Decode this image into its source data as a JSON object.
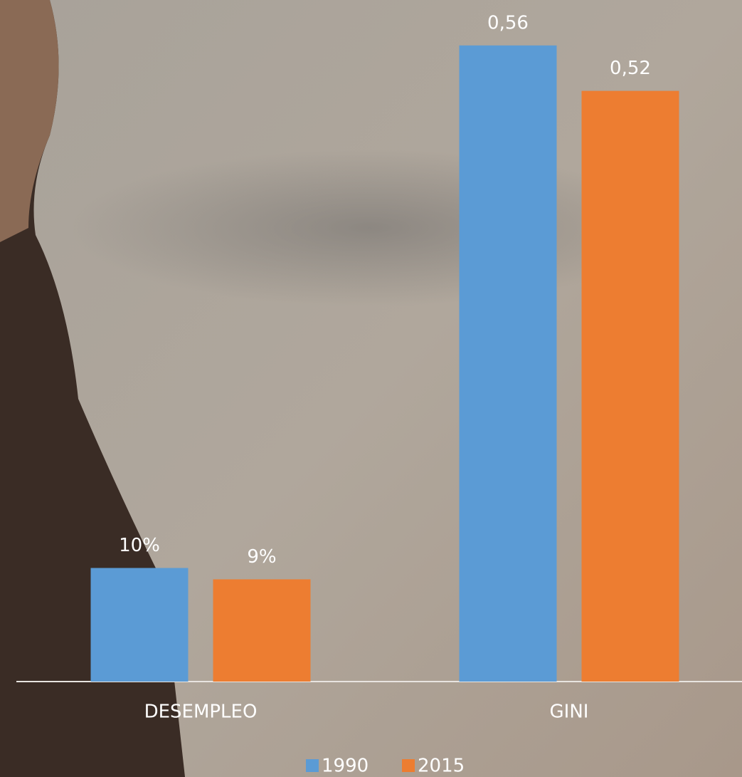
{
  "chart_data": {
    "type": "bar",
    "categories": [
      "DESEMPLEO",
      "GINI"
    ],
    "series": [
      {
        "name": "1990",
        "color": "#5b9bd5",
        "values": [
          0.1,
          0.56
        ],
        "value_labels": [
          "10%",
          "0,56"
        ]
      },
      {
        "name": "2015",
        "color": "#ed7d31",
        "values": [
          0.09,
          0.52
        ],
        "value_labels": [
          "9%",
          "0,52"
        ]
      }
    ],
    "ylim": [
      0,
      0.6
    ],
    "legend": "bottom"
  }
}
